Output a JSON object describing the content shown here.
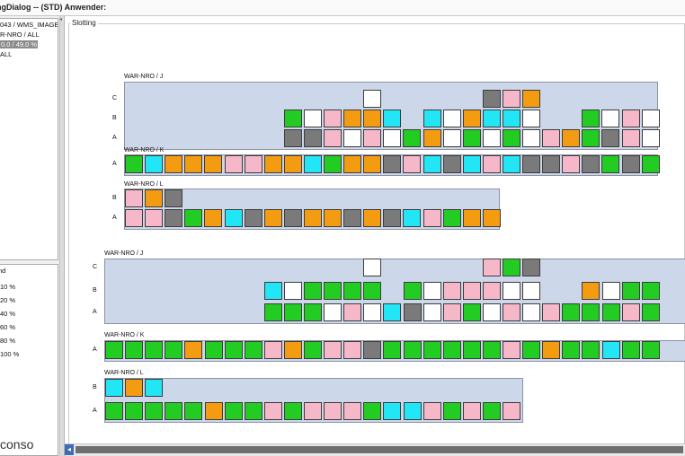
{
  "window": {
    "title": "ngDialog -- (STD) Anwender:"
  },
  "sidebar": {
    "tree": [
      "043 / WMS_IMAGE",
      "R-NRO / ALL",
      "0.0 / 49.0 %",
      "ALL"
    ],
    "legend_title": "nd",
    "legend": [
      "10 %",
      "20 %",
      "40 %",
      "60 %",
      "80 %",
      "100 %"
    ],
    "logo": "conso"
  },
  "panel_title": "Slotting",
  "colors": {
    "G": "#22cc22",
    "W": "#ffffff",
    "P": "#f6b8c8",
    "O": "#f39c12",
    "C": "#22e5f5",
    "D": "#7a7a7a"
  },
  "racks": [
    {
      "title": "WAR-NRO / J",
      "rows": [
        {
          "label": "C",
          "cells": [
            {
              "c": 12,
              "k": "W"
            },
            {
              "c": 18,
              "k": "D"
            },
            {
              "c": 19,
              "k": "P"
            },
            {
              "c": 20,
              "k": "O"
            }
          ]
        },
        {
          "label": "B",
          "cells": [
            {
              "c": 8,
              "k": "G"
            },
            {
              "c": 9,
              "k": "W"
            },
            {
              "c": 10,
              "k": "P"
            },
            {
              "c": 11,
              "k": "O"
            },
            {
              "c": 12,
              "k": "O"
            },
            {
              "c": 13,
              "k": "C"
            },
            {
              "c": 15,
              "k": "C"
            },
            {
              "c": 16,
              "k": "W"
            },
            {
              "c": 17,
              "k": "O"
            },
            {
              "c": 18,
              "k": "C"
            },
            {
              "c": 19,
              "k": "C"
            },
            {
              "c": 20,
              "k": "W"
            },
            {
              "c": 23,
              "k": "G"
            },
            {
              "c": 24,
              "k": "W"
            },
            {
              "c": 25,
              "k": "P"
            },
            {
              "c": 26,
              "k": "W"
            }
          ]
        },
        {
          "label": "A",
          "cells": [
            {
              "c": 8,
              "k": "D"
            },
            {
              "c": 9,
              "k": "D"
            },
            {
              "c": 10,
              "k": "P"
            },
            {
              "c": 11,
              "k": "W"
            },
            {
              "c": 12,
              "k": "P"
            },
            {
              "c": 13,
              "k": "W"
            },
            {
              "c": 14,
              "k": "G"
            },
            {
              "c": 15,
              "k": "O"
            },
            {
              "c": 16,
              "k": "W"
            },
            {
              "c": 17,
              "k": "G"
            },
            {
              "c": 18,
              "k": "W"
            },
            {
              "c": 19,
              "k": "G"
            },
            {
              "c": 20,
              "k": "W"
            },
            {
              "c": 21,
              "k": "P"
            },
            {
              "c": 22,
              "k": "O"
            },
            {
              "c": 23,
              "k": "G"
            },
            {
              "c": 24,
              "k": "D"
            },
            {
              "c": 25,
              "k": "P"
            },
            {
              "c": 26,
              "k": "W"
            }
          ]
        }
      ]
    },
    {
      "title": "WAR-NRO / K",
      "rows": [
        {
          "label": "A",
          "cells": [
            {
              "c": 0,
              "k": "G"
            },
            {
              "c": 1,
              "k": "C"
            },
            {
              "c": 2,
              "k": "O"
            },
            {
              "c": 3,
              "k": "O"
            },
            {
              "c": 4,
              "k": "O"
            },
            {
              "c": 5,
              "k": "P"
            },
            {
              "c": 6,
              "k": "P"
            },
            {
              "c": 7,
              "k": "O"
            },
            {
              "c": 8,
              "k": "O"
            },
            {
              "c": 9,
              "k": "C"
            },
            {
              "c": 10,
              "k": "G"
            },
            {
              "c": 11,
              "k": "O"
            },
            {
              "c": 12,
              "k": "O"
            },
            {
              "c": 13,
              "k": "D"
            },
            {
              "c": 14,
              "k": "P"
            },
            {
              "c": 15,
              "k": "C"
            },
            {
              "c": 16,
              "k": "D"
            },
            {
              "c": 17,
              "k": "C"
            },
            {
              "c": 18,
              "k": "P"
            },
            {
              "c": 19,
              "k": "C"
            },
            {
              "c": 20,
              "k": "D"
            },
            {
              "c": 21,
              "k": "D"
            },
            {
              "c": 22,
              "k": "P"
            },
            {
              "c": 23,
              "k": "D"
            },
            {
              "c": 24,
              "k": "G"
            },
            {
              "c": 25,
              "k": "D"
            },
            {
              "c": 26,
              "k": "G"
            }
          ]
        }
      ]
    },
    {
      "title": "WAR-NRO / L",
      "rows": [
        {
          "label": "B",
          "cells": [
            {
              "c": 0,
              "k": "P"
            },
            {
              "c": 1,
              "k": "O"
            },
            {
              "c": 2,
              "k": "D"
            }
          ]
        },
        {
          "label": "A",
          "cells": [
            {
              "c": 0,
              "k": "P"
            },
            {
              "c": 1,
              "k": "P"
            },
            {
              "c": 2,
              "k": "D"
            },
            {
              "c": 3,
              "k": "G"
            },
            {
              "c": 4,
              "k": "O"
            },
            {
              "c": 5,
              "k": "C"
            },
            {
              "c": 6,
              "k": "D"
            },
            {
              "c": 7,
              "k": "O"
            },
            {
              "c": 8,
              "k": "D"
            },
            {
              "c": 9,
              "k": "O"
            },
            {
              "c": 10,
              "k": "O"
            },
            {
              "c": 11,
              "k": "D"
            },
            {
              "c": 12,
              "k": "O"
            },
            {
              "c": 13,
              "k": "D"
            },
            {
              "c": 14,
              "k": "C"
            },
            {
              "c": 15,
              "k": "P"
            },
            {
              "c": 16,
              "k": "G"
            },
            {
              "c": 17,
              "k": "O"
            },
            {
              "c": 18,
              "k": "O"
            }
          ]
        }
      ]
    },
    {
      "title": "WAR-NRO / J",
      "rows": [
        {
          "label": "C",
          "cells": [
            {
              "c": 13,
              "k": "W"
            },
            {
              "c": 19,
              "k": "P"
            },
            {
              "c": 20,
              "k": "G"
            },
            {
              "c": 21,
              "k": "D"
            }
          ]
        },
        {
          "label": "B",
          "cells": [
            {
              "c": 8,
              "k": "C"
            },
            {
              "c": 9,
              "k": "W"
            },
            {
              "c": 10,
              "k": "G"
            },
            {
              "c": 11,
              "k": "G"
            },
            {
              "c": 12,
              "k": "G"
            },
            {
              "c": 13,
              "k": "G"
            },
            {
              "c": 15,
              "k": "G"
            },
            {
              "c": 16,
              "k": "W"
            },
            {
              "c": 17,
              "k": "P"
            },
            {
              "c": 18,
              "k": "P"
            },
            {
              "c": 19,
              "k": "P"
            },
            {
              "c": 20,
              "k": "W"
            },
            {
              "c": 21,
              "k": "W"
            },
            {
              "c": 24,
              "k": "O"
            },
            {
              "c": 25,
              "k": "W"
            },
            {
              "c": 26,
              "k": "G"
            },
            {
              "c": 27,
              "k": "G"
            }
          ]
        },
        {
          "label": "A",
          "cells": [
            {
              "c": 8,
              "k": "G"
            },
            {
              "c": 9,
              "k": "G"
            },
            {
              "c": 10,
              "k": "G"
            },
            {
              "c": 11,
              "k": "W"
            },
            {
              "c": 12,
              "k": "P"
            },
            {
              "c": 13,
              "k": "W"
            },
            {
              "c": 14,
              "k": "C"
            },
            {
              "c": 15,
              "k": "D"
            },
            {
              "c": 16,
              "k": "W"
            },
            {
              "c": 17,
              "k": "P"
            },
            {
              "c": 18,
              "k": "G"
            },
            {
              "c": 19,
              "k": "W"
            },
            {
              "c": 20,
              "k": "P"
            },
            {
              "c": 21,
              "k": "W"
            },
            {
              "c": 22,
              "k": "P"
            },
            {
              "c": 23,
              "k": "G"
            },
            {
              "c": 24,
              "k": "G"
            },
            {
              "c": 25,
              "k": "G"
            },
            {
              "c": 26,
              "k": "P"
            },
            {
              "c": 27,
              "k": "G"
            }
          ]
        }
      ]
    },
    {
      "title": "WAR-NRO / K",
      "rows": [
        {
          "label": "A",
          "cells": [
            {
              "c": 0,
              "k": "G"
            },
            {
              "c": 1,
              "k": "G"
            },
            {
              "c": 2,
              "k": "G"
            },
            {
              "c": 3,
              "k": "G"
            },
            {
              "c": 4,
              "k": "O"
            },
            {
              "c": 5,
              "k": "G"
            },
            {
              "c": 6,
              "k": "G"
            },
            {
              "c": 7,
              "k": "G"
            },
            {
              "c": 8,
              "k": "P"
            },
            {
              "c": 9,
              "k": "O"
            },
            {
              "c": 10,
              "k": "G"
            },
            {
              "c": 11,
              "k": "P"
            },
            {
              "c": 12,
              "k": "P"
            },
            {
              "c": 13,
              "k": "D"
            },
            {
              "c": 14,
              "k": "G"
            },
            {
              "c": 15,
              "k": "G"
            },
            {
              "c": 16,
              "k": "G"
            },
            {
              "c": 17,
              "k": "G"
            },
            {
              "c": 18,
              "k": "G"
            },
            {
              "c": 19,
              "k": "G"
            },
            {
              "c": 20,
              "k": "P"
            },
            {
              "c": 21,
              "k": "G"
            },
            {
              "c": 22,
              "k": "O"
            },
            {
              "c": 23,
              "k": "G"
            },
            {
              "c": 24,
              "k": "G"
            },
            {
              "c": 25,
              "k": "C"
            },
            {
              "c": 26,
              "k": "G"
            },
            {
              "c": 27,
              "k": "G"
            }
          ]
        }
      ]
    },
    {
      "title": "WAR-NRO / L",
      "rows": [
        {
          "label": "B",
          "cells": [
            {
              "c": 0,
              "k": "C"
            },
            {
              "c": 1,
              "k": "O"
            },
            {
              "c": 2,
              "k": "C"
            }
          ]
        },
        {
          "label": "A",
          "cells": [
            {
              "c": 0,
              "k": "G"
            },
            {
              "c": 1,
              "k": "G"
            },
            {
              "c": 2,
              "k": "G"
            },
            {
              "c": 3,
              "k": "G"
            },
            {
              "c": 4,
              "k": "G"
            },
            {
              "c": 5,
              "k": "O"
            },
            {
              "c": 6,
              "k": "G"
            },
            {
              "c": 7,
              "k": "G"
            },
            {
              "c": 8,
              "k": "P"
            },
            {
              "c": 9,
              "k": "G"
            },
            {
              "c": 10,
              "k": "P"
            },
            {
              "c": 11,
              "k": "P"
            },
            {
              "c": 12,
              "k": "P"
            },
            {
              "c": 13,
              "k": "G"
            },
            {
              "c": 14,
              "k": "C"
            },
            {
              "c": 15,
              "k": "C"
            },
            {
              "c": 16,
              "k": "P"
            },
            {
              "c": 17,
              "k": "G"
            },
            {
              "c": 18,
              "k": "P"
            },
            {
              "c": 19,
              "k": "G"
            },
            {
              "c": 20,
              "k": "P"
            }
          ]
        }
      ]
    }
  ]
}
